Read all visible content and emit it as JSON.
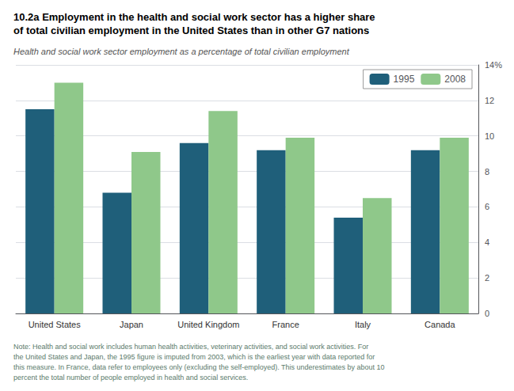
{
  "chart_data": {
    "type": "bar",
    "title": "10.2a Employment in the health and social work sector has a higher share\nof total civilian employment in the United States than in other G7 nations",
    "subtitle": "Health and social work sector employment as a percentage of total civilian employment",
    "categories": [
      "United States",
      "Japan",
      "United Kingdom",
      "France",
      "Italy",
      "Canada"
    ],
    "series": [
      {
        "name": "1995",
        "color": "#1f5f7a",
        "values": [
          11.5,
          6.8,
          9.6,
          9.2,
          5.4,
          9.2
        ]
      },
      {
        "name": "2008",
        "color": "#8fc88a",
        "values": [
          13.0,
          9.1,
          11.4,
          9.9,
          6.5,
          9.9
        ]
      }
    ],
    "ylim": [
      0,
      14
    ],
    "yticks": [
      0,
      2,
      4,
      6,
      8,
      10,
      12,
      {
        "value": 14,
        "label": "14%"
      }
    ],
    "grid": true,
    "legend": "upper right",
    "annotations": [
      "Note: Health and social work includes human health activities, veterinary activities, and social work activities. For\nthe United States and Japan, the 1995 figure is imputed from 2003, which is the earliest year with data reported for\nthis measure. In France, data refer to employees only (excluding the self-employed). This underestimates by about 10\npercent the total number of people employed in health and social services."
    ]
  }
}
